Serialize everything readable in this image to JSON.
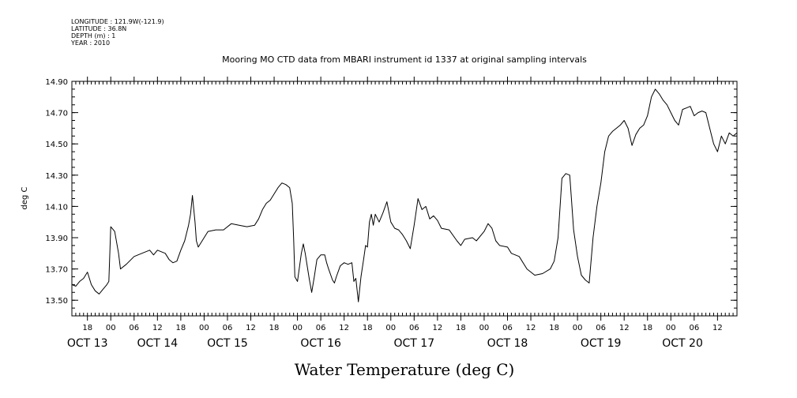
{
  "meta": {
    "longitude": "LONGITUDE : 121.9W(-121.9)",
    "latitude": "LATITUDE : 36.8N",
    "depth": "DEPTH (m) : 1",
    "year": "YEAR : 2010"
  },
  "chart_data": {
    "type": "line",
    "title": "Mooring MO CTD data from MBARI instrument id 1337 at original sampling intervals",
    "xlabel": "Water Temperature (deg C)",
    "ylabel": "deg C",
    "xlim": [
      "2010-10-13T14:00",
      "2010-10-20T17:00"
    ],
    "ylim": [
      13.4,
      14.9
    ],
    "yticks": [
      "13.50",
      "13.70",
      "13.90",
      "14.10",
      "14.30",
      "14.50",
      "14.70",
      "14.90"
    ],
    "hour_ticks": [
      {
        "t": "2010-10-13T18:00",
        "label": "18"
      },
      {
        "t": "2010-10-14T00:00",
        "label": "00"
      },
      {
        "t": "2010-10-14T06:00",
        "label": "06"
      },
      {
        "t": "2010-10-14T12:00",
        "label": "12"
      },
      {
        "t": "2010-10-14T18:00",
        "label": "18"
      },
      {
        "t": "2010-10-15T00:00",
        "label": "00"
      },
      {
        "t": "2010-10-15T06:00",
        "label": "06"
      },
      {
        "t": "2010-10-15T12:00",
        "label": "12"
      },
      {
        "t": "2010-10-15T18:00",
        "label": "18"
      },
      {
        "t": "2010-10-16T00:00",
        "label": "00"
      },
      {
        "t": "2010-10-16T06:00",
        "label": "06"
      },
      {
        "t": "2010-10-16T12:00",
        "label": "12"
      },
      {
        "t": "2010-10-16T18:00",
        "label": "18"
      },
      {
        "t": "2010-10-17T00:00",
        "label": "00"
      },
      {
        "t": "2010-10-17T06:00",
        "label": "06"
      },
      {
        "t": "2010-10-17T12:00",
        "label": "12"
      },
      {
        "t": "2010-10-17T18:00",
        "label": "18"
      },
      {
        "t": "2010-10-18T00:00",
        "label": "00"
      },
      {
        "t": "2010-10-18T06:00",
        "label": "06"
      },
      {
        "t": "2010-10-18T12:00",
        "label": "12"
      },
      {
        "t": "2010-10-18T18:00",
        "label": "18"
      },
      {
        "t": "2010-10-19T00:00",
        "label": "00"
      },
      {
        "t": "2010-10-19T06:00",
        "label": "06"
      },
      {
        "t": "2010-10-19T12:00",
        "label": "12"
      },
      {
        "t": "2010-10-19T18:00",
        "label": "18"
      },
      {
        "t": "2010-10-20T00:00",
        "label": "00"
      },
      {
        "t": "2010-10-20T06:00",
        "label": "06"
      },
      {
        "t": "2010-10-20T12:00",
        "label": "12"
      }
    ],
    "day_labels": [
      {
        "t": "2010-10-13T18:00",
        "label": "OCT 13"
      },
      {
        "t": "2010-10-14T12:00",
        "label": "OCT 14"
      },
      {
        "t": "2010-10-15T06:00",
        "label": "OCT 15"
      },
      {
        "t": "2010-10-16T06:00",
        "label": "OCT 16"
      },
      {
        "t": "2010-10-17T06:00",
        "label": "OCT 17"
      },
      {
        "t": "2010-10-18T06:00",
        "label": "OCT 18"
      },
      {
        "t": "2010-10-19T06:00",
        "label": "OCT 19"
      },
      {
        "t": "2010-10-20T03:00",
        "label": "OCT 20"
      }
    ],
    "series": [
      {
        "color": "#000000",
        "points": [
          [
            "2010-10-13T14:00",
            13.6
          ],
          [
            "2010-10-13T15:00",
            13.59
          ],
          [
            "2010-10-13T16:00",
            13.62
          ],
          [
            "2010-10-13T17:00",
            13.64
          ],
          [
            "2010-10-13T18:00",
            13.68
          ],
          [
            "2010-10-13T19:00",
            13.6
          ],
          [
            "2010-10-13T20:00",
            13.56
          ],
          [
            "2010-10-13T21:00",
            13.54
          ],
          [
            "2010-10-13T22:00",
            13.57
          ],
          [
            "2010-10-13T23:00",
            13.6
          ],
          [
            "2010-10-13T23:30",
            13.62
          ],
          [
            "2010-10-14T00:00",
            13.97
          ],
          [
            "2010-10-14T01:00",
            13.94
          ],
          [
            "2010-10-14T02:00",
            13.8
          ],
          [
            "2010-10-14T02:30",
            13.7
          ],
          [
            "2010-10-14T04:00",
            13.73
          ],
          [
            "2010-10-14T06:00",
            13.78
          ],
          [
            "2010-10-14T08:00",
            13.8
          ],
          [
            "2010-10-14T10:00",
            13.82
          ],
          [
            "2010-10-14T11:00",
            13.79
          ],
          [
            "2010-10-14T12:00",
            13.82
          ],
          [
            "2010-10-14T14:00",
            13.8
          ],
          [
            "2010-10-14T15:00",
            13.76
          ],
          [
            "2010-10-14T16:00",
            13.74
          ],
          [
            "2010-10-14T17:00",
            13.75
          ],
          [
            "2010-10-14T18:00",
            13.82
          ],
          [
            "2010-10-14T19:00",
            13.88
          ],
          [
            "2010-10-14T20:00",
            13.98
          ],
          [
            "2010-10-14T20:30",
            14.05
          ],
          [
            "2010-10-14T21:00",
            14.17
          ],
          [
            "2010-10-14T21:40",
            14.0
          ],
          [
            "2010-10-14T22:00",
            13.88
          ],
          [
            "2010-10-14T22:30",
            13.84
          ],
          [
            "2010-10-14T23:00",
            13.86
          ],
          [
            "2010-10-15T00:00",
            13.9
          ],
          [
            "2010-10-15T01:00",
            13.94
          ],
          [
            "2010-10-15T03:00",
            13.95
          ],
          [
            "2010-10-15T05:00",
            13.95
          ],
          [
            "2010-10-15T07:00",
            13.99
          ],
          [
            "2010-10-15T09:00",
            13.98
          ],
          [
            "2010-10-15T11:00",
            13.97
          ],
          [
            "2010-10-15T13:00",
            13.98
          ],
          [
            "2010-10-15T14:00",
            14.02
          ],
          [
            "2010-10-15T15:00",
            14.08
          ],
          [
            "2010-10-15T16:00",
            14.12
          ],
          [
            "2010-10-15T17:00",
            14.14
          ],
          [
            "2010-10-15T18:00",
            14.18
          ],
          [
            "2010-10-15T19:00",
            14.22
          ],
          [
            "2010-10-15T20:00",
            14.25
          ],
          [
            "2010-10-15T21:00",
            14.24
          ],
          [
            "2010-10-15T22:00",
            14.22
          ],
          [
            "2010-10-15T22:40",
            14.12
          ],
          [
            "2010-10-15T23:00",
            13.9
          ],
          [
            "2010-10-15T23:20",
            13.65
          ],
          [
            "2010-10-16T00:00",
            13.62
          ],
          [
            "2010-10-16T01:00",
            13.8
          ],
          [
            "2010-10-16T01:30",
            13.86
          ],
          [
            "2010-10-16T02:00",
            13.8
          ],
          [
            "2010-10-16T03:00",
            13.64
          ],
          [
            "2010-10-16T03:40",
            13.55
          ],
          [
            "2010-10-16T04:20",
            13.65
          ],
          [
            "2010-10-16T05:00",
            13.76
          ],
          [
            "2010-10-16T06:00",
            13.79
          ],
          [
            "2010-10-16T07:00",
            13.79
          ],
          [
            "2010-10-16T07:30",
            13.74
          ],
          [
            "2010-10-16T08:00",
            13.7
          ],
          [
            "2010-10-16T09:00",
            13.63
          ],
          [
            "2010-10-16T09:30",
            13.61
          ],
          [
            "2010-10-16T10:00",
            13.65
          ],
          [
            "2010-10-16T11:00",
            13.72
          ],
          [
            "2010-10-16T12:00",
            13.74
          ],
          [
            "2010-10-16T13:00",
            13.73
          ],
          [
            "2010-10-16T14:00",
            13.74
          ],
          [
            "2010-10-16T14:30",
            13.62
          ],
          [
            "2010-10-16T15:00",
            13.64
          ],
          [
            "2010-10-16T15:40",
            13.49
          ],
          [
            "2010-10-16T16:20",
            13.65
          ],
          [
            "2010-10-16T17:00",
            13.76
          ],
          [
            "2010-10-16T17:30",
            13.85
          ],
          [
            "2010-10-16T18:00",
            13.84
          ],
          [
            "2010-10-16T18:30",
            14.0
          ],
          [
            "2010-10-16T19:00",
            14.05
          ],
          [
            "2010-10-16T19:30",
            13.98
          ],
          [
            "2010-10-16T20:00",
            14.05
          ],
          [
            "2010-10-16T21:00",
            14.0
          ],
          [
            "2010-10-16T22:00",
            14.06
          ],
          [
            "2010-10-16T23:00",
            14.13
          ],
          [
            "2010-10-17T00:00",
            14.0
          ],
          [
            "2010-10-17T01:00",
            13.96
          ],
          [
            "2010-10-17T02:00",
            13.95
          ],
          [
            "2010-10-17T03:00",
            13.92
          ],
          [
            "2010-10-17T04:00",
            13.88
          ],
          [
            "2010-10-17T05:00",
            13.83
          ],
          [
            "2010-10-17T06:00",
            13.98
          ],
          [
            "2010-10-17T07:00",
            14.15
          ],
          [
            "2010-10-17T08:00",
            14.08
          ],
          [
            "2010-10-17T09:00",
            14.1
          ],
          [
            "2010-10-17T10:00",
            14.02
          ],
          [
            "2010-10-17T11:00",
            14.04
          ],
          [
            "2010-10-17T12:00",
            14.01
          ],
          [
            "2010-10-17T13:00",
            13.96
          ],
          [
            "2010-10-17T15:00",
            13.95
          ],
          [
            "2010-10-17T17:00",
            13.88
          ],
          [
            "2010-10-17T18:00",
            13.85
          ],
          [
            "2010-10-17T19:00",
            13.89
          ],
          [
            "2010-10-17T21:00",
            13.9
          ],
          [
            "2010-10-17T22:00",
            13.88
          ],
          [
            "2010-10-18T00:00",
            13.94
          ],
          [
            "2010-10-18T01:00",
            13.99
          ],
          [
            "2010-10-18T02:00",
            13.96
          ],
          [
            "2010-10-18T03:00",
            13.88
          ],
          [
            "2010-10-18T04:00",
            13.85
          ],
          [
            "2010-10-18T06:00",
            13.84
          ],
          [
            "2010-10-18T07:00",
            13.8
          ],
          [
            "2010-10-18T09:00",
            13.78
          ],
          [
            "2010-10-18T11:00",
            13.7
          ],
          [
            "2010-10-18T13:00",
            13.66
          ],
          [
            "2010-10-18T15:00",
            13.67
          ],
          [
            "2010-10-18T17:00",
            13.7
          ],
          [
            "2010-10-18T18:00",
            13.75
          ],
          [
            "2010-10-18T19:00",
            13.9
          ],
          [
            "2010-10-18T20:00",
            14.28
          ],
          [
            "2010-10-18T21:00",
            14.31
          ],
          [
            "2010-10-18T22:00",
            14.3
          ],
          [
            "2010-10-18T23:00",
            13.95
          ],
          [
            "2010-10-19T00:00",
            13.78
          ],
          [
            "2010-10-19T01:00",
            13.66
          ],
          [
            "2010-10-19T02:00",
            13.63
          ],
          [
            "2010-10-19T03:00",
            13.61
          ],
          [
            "2010-10-19T04:00",
            13.9
          ],
          [
            "2010-10-19T05:00",
            14.1
          ],
          [
            "2010-10-19T06:00",
            14.25
          ],
          [
            "2010-10-19T07:00",
            14.45
          ],
          [
            "2010-10-19T08:00",
            14.55
          ],
          [
            "2010-10-19T09:00",
            14.58
          ],
          [
            "2010-10-19T10:00",
            14.6
          ],
          [
            "2010-10-19T11:00",
            14.62
          ],
          [
            "2010-10-19T12:00",
            14.65
          ],
          [
            "2010-10-19T13:00",
            14.6
          ],
          [
            "2010-10-19T14:00",
            14.49
          ],
          [
            "2010-10-19T15:00",
            14.56
          ],
          [
            "2010-10-19T16:00",
            14.6
          ],
          [
            "2010-10-19T17:00",
            14.62
          ],
          [
            "2010-10-19T18:00",
            14.68
          ],
          [
            "2010-10-19T19:00",
            14.8
          ],
          [
            "2010-10-19T20:00",
            14.85
          ],
          [
            "2010-10-19T21:00",
            14.82
          ],
          [
            "2010-10-19T22:00",
            14.78
          ],
          [
            "2010-10-19T23:00",
            14.75
          ],
          [
            "2010-10-20T00:00",
            14.7
          ],
          [
            "2010-10-20T01:00",
            14.65
          ],
          [
            "2010-10-20T02:00",
            14.62
          ],
          [
            "2010-10-20T03:00",
            14.72
          ],
          [
            "2010-10-20T04:00",
            14.73
          ],
          [
            "2010-10-20T05:00",
            14.74
          ],
          [
            "2010-10-20T06:00",
            14.68
          ],
          [
            "2010-10-20T07:00",
            14.7
          ],
          [
            "2010-10-20T08:00",
            14.71
          ],
          [
            "2010-10-20T09:00",
            14.7
          ],
          [
            "2010-10-20T10:00",
            14.6
          ],
          [
            "2010-10-20T11:00",
            14.5
          ],
          [
            "2010-10-20T12:00",
            14.45
          ],
          [
            "2010-10-20T13:00",
            14.55
          ],
          [
            "2010-10-20T14:00",
            14.5
          ],
          [
            "2010-10-20T15:00",
            14.57
          ],
          [
            "2010-10-20T16:00",
            14.55
          ],
          [
            "2010-10-20T17:00",
            14.57
          ]
        ]
      }
    ]
  }
}
